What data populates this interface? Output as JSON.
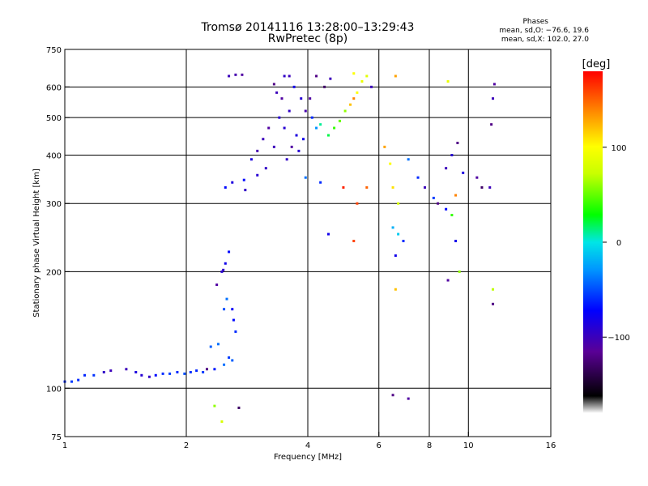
{
  "title": "Tromsø 20141116 13:28:00–13:29:43",
  "subtitle": "RwPretec (8p)",
  "phases_box": {
    "header": "Phases",
    "line1": "mean, sd,O: −76.6, 19.6",
    "line2": "mean, sd,X: 102.0, 27.0"
  },
  "colorbar": {
    "unit_label": "[deg]",
    "range": [
      -180,
      180
    ],
    "ticks": [
      {
        "value": 100,
        "label": "100"
      },
      {
        "value": 0,
        "label": "0"
      },
      {
        "value": -100,
        "label": "−100"
      }
    ]
  },
  "chart_data": {
    "type": "scatter",
    "title": "Tromsø 20141116 13:28:00–13:29:43",
    "subtitle": "RwPretec (8p)",
    "xlabel": "Frequency [MHz]",
    "ylabel": "Stationary phase Virtual Height [km]",
    "x_scale": "log",
    "y_scale": "log",
    "xlim": [
      1,
      16
    ],
    "ylim": [
      75,
      750
    ],
    "x_ticks": [
      1,
      2,
      4,
      6,
      8,
      10,
      16
    ],
    "x_tick_labels": [
      "1",
      "2",
      "4",
      "6",
      "8",
      "10",
      "16"
    ],
    "x_gridlines": [
      2,
      4,
      6,
      8,
      10
    ],
    "y_ticks": [
      75,
      100,
      200,
      300,
      400,
      500,
      600,
      750
    ],
    "y_tick_labels": [
      "75",
      "100",
      "200",
      "300",
      "400",
      "500",
      "600",
      "750"
    ],
    "y_gridlines": [
      100,
      200,
      300,
      400,
      500,
      600
    ],
    "grid": true,
    "color_encoding": "phase [deg]",
    "series": [
      {
        "points": [
          [
            1.0,
            104,
            -60
          ],
          [
            1.04,
            104,
            -55
          ],
          [
            1.08,
            105,
            -60
          ],
          [
            1.12,
            108,
            -62
          ],
          [
            1.18,
            108,
            -58
          ],
          [
            1.25,
            110,
            -95
          ],
          [
            1.3,
            111,
            -100
          ],
          [
            1.42,
            112,
            -100
          ],
          [
            1.5,
            110,
            -85
          ],
          [
            1.55,
            108,
            -90
          ],
          [
            1.62,
            107,
            -95
          ],
          [
            1.68,
            108,
            -70
          ],
          [
            1.75,
            109,
            -60
          ],
          [
            1.82,
            109,
            -55
          ],
          [
            1.9,
            110,
            -60
          ],
          [
            1.98,
            109,
            -50
          ],
          [
            2.05,
            110,
            -58
          ],
          [
            2.12,
            111,
            -62
          ],
          [
            2.2,
            110,
            -55
          ],
          [
            2.35,
            112,
            -65
          ],
          [
            2.48,
            115,
            -40
          ],
          [
            2.55,
            120,
            -55
          ],
          [
            2.6,
            118,
            -45
          ],
          [
            2.65,
            140,
            -60
          ],
          [
            2.62,
            150,
            -70
          ],
          [
            2.6,
            160,
            -75
          ],
          [
            2.52,
            170,
            -40
          ],
          [
            2.45,
            200,
            -90
          ],
          [
            2.5,
            210,
            -80
          ],
          [
            2.55,
            225,
            -70
          ],
          [
            2.47,
            202,
            -95
          ],
          [
            2.38,
            185,
            -110
          ],
          [
            2.48,
            160,
            -50
          ],
          [
            2.4,
            130,
            -40
          ],
          [
            2.3,
            128,
            -45
          ],
          [
            2.25,
            112,
            -120
          ],
          [
            2.5,
            330,
            -70
          ],
          [
            2.6,
            340,
            -85
          ],
          [
            2.8,
            325,
            -95
          ],
          [
            3.0,
            355,
            -90
          ],
          [
            3.15,
            370,
            -95
          ],
          [
            3.3,
            420,
            -100
          ],
          [
            3.4,
            500,
            -90
          ],
          [
            3.45,
            560,
            -110
          ],
          [
            3.5,
            640,
            -95
          ],
          [
            3.6,
            640,
            -100
          ],
          [
            3.7,
            600,
            -80
          ],
          [
            3.85,
            560,
            -90
          ],
          [
            3.95,
            520,
            -105
          ],
          [
            3.3,
            610,
            -120
          ],
          [
            3.35,
            580,
            -100
          ],
          [
            3.5,
            470,
            -90
          ],
          [
            3.6,
            520,
            -95
          ],
          [
            3.75,
            450,
            -85
          ],
          [
            3.9,
            440,
            -80
          ],
          [
            3.2,
            470,
            -110
          ],
          [
            3.1,
            440,
            -100
          ],
          [
            3.0,
            410,
            -105
          ],
          [
            2.9,
            390,
            -85
          ],
          [
            2.78,
            345,
            -70
          ],
          [
            3.55,
            390,
            -95
          ],
          [
            3.65,
            420,
            -110
          ],
          [
            3.8,
            410,
            -90
          ],
          [
            2.55,
            640,
            -100
          ],
          [
            2.65,
            645,
            -105
          ],
          [
            2.75,
            645,
            -110
          ],
          [
            4.05,
            560,
            -110
          ],
          [
            4.2,
            640,
            -120
          ],
          [
            4.4,
            600,
            -130
          ],
          [
            4.55,
            630,
            -100
          ],
          [
            4.1,
            500,
            -60
          ],
          [
            4.2,
            470,
            -30
          ],
          [
            4.3,
            480,
            10
          ],
          [
            4.5,
            450,
            20
          ],
          [
            4.65,
            470,
            40
          ],
          [
            4.8,
            490,
            50
          ],
          [
            4.95,
            520,
            60
          ],
          [
            5.1,
            540,
            120
          ],
          [
            5.2,
            560,
            140
          ],
          [
            5.3,
            580,
            100
          ],
          [
            5.45,
            620,
            90
          ],
          [
            5.6,
            640,
            85
          ],
          [
            5.2,
            650,
            100
          ],
          [
            5.75,
            600,
            -100
          ],
          [
            6.2,
            420,
            130
          ],
          [
            6.4,
            380,
            100
          ],
          [
            6.5,
            330,
            110
          ],
          [
            6.7,
            300,
            80
          ],
          [
            6.5,
            260,
            -20
          ],
          [
            6.7,
            250,
            -10
          ],
          [
            6.9,
            240,
            -60
          ],
          [
            6.6,
            220,
            -80
          ],
          [
            7.1,
            390,
            -40
          ],
          [
            7.5,
            350,
            -60
          ],
          [
            7.8,
            330,
            -100
          ],
          [
            8.2,
            310,
            -55
          ],
          [
            8.4,
            300,
            -120
          ],
          [
            8.8,
            290,
            -70
          ],
          [
            9.1,
            280,
            40
          ],
          [
            9.3,
            240,
            -80
          ],
          [
            9.5,
            200,
            60
          ],
          [
            8.9,
            190,
            -110
          ],
          [
            8.8,
            370,
            -100
          ],
          [
            9.1,
            400,
            -90
          ],
          [
            9.4,
            430,
            -120
          ],
          [
            9.7,
            360,
            -85
          ],
          [
            10.5,
            350,
            -110
          ],
          [
            10.8,
            330,
            -130
          ],
          [
            11.3,
            330,
            -100
          ],
          [
            11.5,
            560,
            -100
          ],
          [
            11.6,
            610,
            -110
          ],
          [
            11.4,
            480,
            -120
          ],
          [
            11.5,
            180,
            70
          ],
          [
            11.5,
            165,
            -120
          ],
          [
            6.6,
            180,
            120
          ],
          [
            6.5,
            96,
            -120
          ],
          [
            7.1,
            94,
            -110
          ],
          [
            2.7,
            89,
            -130
          ],
          [
            2.35,
            90,
            60
          ],
          [
            2.45,
            82,
            80
          ],
          [
            8.9,
            620,
            90
          ],
          [
            6.6,
            640,
            130
          ],
          [
            5.6,
            330,
            150
          ],
          [
            5.3,
            300,
            160
          ],
          [
            9.3,
            315,
            140
          ],
          [
            4.3,
            340,
            -60
          ],
          [
            4.5,
            250,
            -80
          ],
          [
            4.9,
            330,
            170
          ],
          [
            5.2,
            240,
            160
          ],
          [
            3.95,
            350,
            -40
          ]
        ]
      }
    ]
  }
}
